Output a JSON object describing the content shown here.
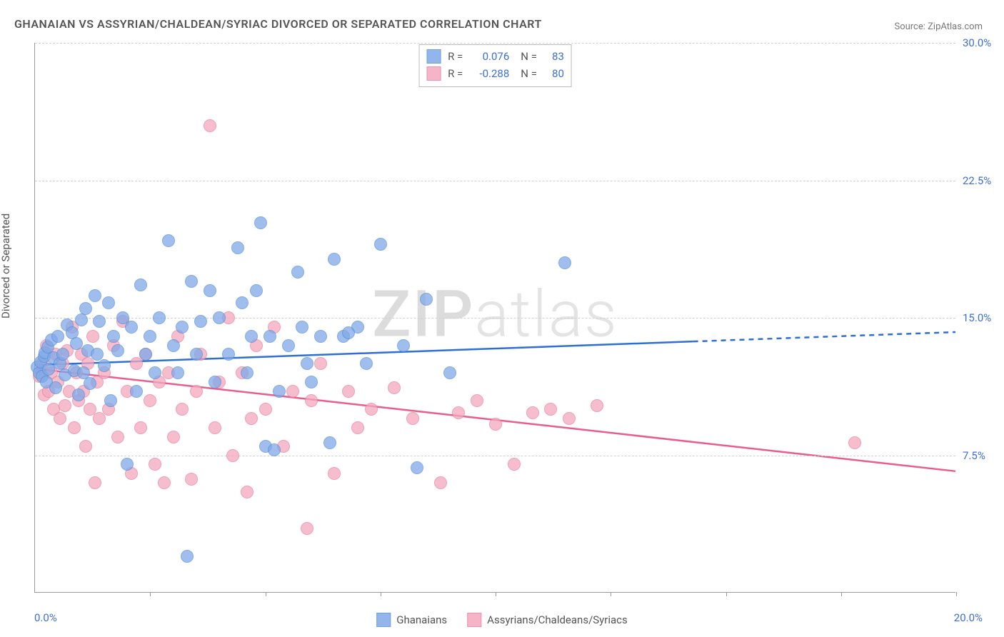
{
  "title": "GHANAIAN VS ASSYRIAN/CHALDEAN/SYRIAC DIVORCED OR SEPARATED CORRELATION CHART",
  "source_label": "Source: ",
  "source_name": "ZipAtlas.com",
  "ylabel": "Divorced or Separated",
  "watermark_bold": "ZIP",
  "watermark_thin": "atlas",
  "chart": {
    "type": "scatter",
    "xlim": [
      0,
      20
    ],
    "ylim": [
      0,
      30
    ],
    "x_ticks": [
      0,
      2.5,
      5,
      7.5,
      10,
      12.5,
      15,
      17.5,
      20
    ],
    "y_gridlines": [
      7.5,
      15,
      22.5,
      30
    ],
    "y_tick_labels": [
      "7.5%",
      "15.0%",
      "22.5%",
      "30.0%"
    ],
    "x_left_label": "0.0%",
    "x_right_label": "20.0%",
    "background_color": "#ffffff",
    "grid_color": "#d0d0d0",
    "axis_color": "#999999",
    "point_radius": 9,
    "point_border_width": 1.5,
    "point_fill_opacity": 0.35,
    "series": [
      {
        "id": "blue",
        "name": "Ghanaians",
        "color_fill": "#7fa9e8",
        "color_stroke": "#5b8fd9",
        "trend_color": "#2e6fd6",
        "R": "0.076",
        "N": "83",
        "trend": {
          "x1": 0,
          "y1": 12.4,
          "x2": 20,
          "y2": 14.2,
          "dash_from_x": 14.3
        },
        "points": [
          [
            0.05,
            12.3
          ],
          [
            0.1,
            12.0
          ],
          [
            0.12,
            12.6
          ],
          [
            0.15,
            11.8
          ],
          [
            0.2,
            12.9
          ],
          [
            0.22,
            13.1
          ],
          [
            0.25,
            11.5
          ],
          [
            0.28,
            13.4
          ],
          [
            0.3,
            12.2
          ],
          [
            0.35,
            13.8
          ],
          [
            0.4,
            12.8
          ],
          [
            0.45,
            11.2
          ],
          [
            0.5,
            14.0
          ],
          [
            0.55,
            12.5
          ],
          [
            0.6,
            13.0
          ],
          [
            0.65,
            11.9
          ],
          [
            0.7,
            14.6
          ],
          [
            0.8,
            14.2
          ],
          [
            0.85,
            12.1
          ],
          [
            0.9,
            13.6
          ],
          [
            0.95,
            10.8
          ],
          [
            1.0,
            14.9
          ],
          [
            1.05,
            12.0
          ],
          [
            1.1,
            15.5
          ],
          [
            1.15,
            13.2
          ],
          [
            1.2,
            11.4
          ],
          [
            1.3,
            16.2
          ],
          [
            1.35,
            13.0
          ],
          [
            1.4,
            14.8
          ],
          [
            1.5,
            12.4
          ],
          [
            1.6,
            15.8
          ],
          [
            1.65,
            10.5
          ],
          [
            1.7,
            14.0
          ],
          [
            1.8,
            13.2
          ],
          [
            1.9,
            15.0
          ],
          [
            2.0,
            7.0
          ],
          [
            2.1,
            14.5
          ],
          [
            2.2,
            11.0
          ],
          [
            2.3,
            16.8
          ],
          [
            2.4,
            13.0
          ],
          [
            2.5,
            14.0
          ],
          [
            2.6,
            12.0
          ],
          [
            2.7,
            15.0
          ],
          [
            2.9,
            19.2
          ],
          [
            3.0,
            13.5
          ],
          [
            3.1,
            12.0
          ],
          [
            3.2,
            14.5
          ],
          [
            3.3,
            2.0
          ],
          [
            3.4,
            17.0
          ],
          [
            3.5,
            13.0
          ],
          [
            3.6,
            14.8
          ],
          [
            3.8,
            16.5
          ],
          [
            3.9,
            11.5
          ],
          [
            4.0,
            15.0
          ],
          [
            4.2,
            13.0
          ],
          [
            4.4,
            18.8
          ],
          [
            4.5,
            15.8
          ],
          [
            4.6,
            12.0
          ],
          [
            4.7,
            14.0
          ],
          [
            4.8,
            16.5
          ],
          [
            4.9,
            20.2
          ],
          [
            5.0,
            8.0
          ],
          [
            5.1,
            14.0
          ],
          [
            5.2,
            7.8
          ],
          [
            5.3,
            11.0
          ],
          [
            5.5,
            13.5
          ],
          [
            5.7,
            17.5
          ],
          [
            5.8,
            14.5
          ],
          [
            5.9,
            12.5
          ],
          [
            6.0,
            11.5
          ],
          [
            6.2,
            14.0
          ],
          [
            6.4,
            8.2
          ],
          [
            6.5,
            18.2
          ],
          [
            6.7,
            14.0
          ],
          [
            7.0,
            14.5
          ],
          [
            7.2,
            12.5
          ],
          [
            7.5,
            19.0
          ],
          [
            8.0,
            13.5
          ],
          [
            8.3,
            6.8
          ],
          [
            8.5,
            16.0
          ],
          [
            9.0,
            12.0
          ],
          [
            11.5,
            18.0
          ],
          [
            6.8,
            14.2
          ]
        ]
      },
      {
        "id": "pink",
        "name": "Assyrians/Chaldeans/Syriacs",
        "color_fill": "#f4a9bd",
        "color_stroke": "#ea7fa1",
        "trend_color": "#e85d8b",
        "R": "-0.288",
        "N": "80",
        "trend": {
          "x1": 0,
          "y1": 12.2,
          "x2": 20,
          "y2": 6.6,
          "dash_from_x": 20
        },
        "points": [
          [
            0.1,
            11.8
          ],
          [
            0.15,
            12.5
          ],
          [
            0.2,
            10.8
          ],
          [
            0.25,
            13.5
          ],
          [
            0.3,
            11.0
          ],
          [
            0.35,
            12.0
          ],
          [
            0.4,
            10.0
          ],
          [
            0.45,
            13.0
          ],
          [
            0.5,
            11.5
          ],
          [
            0.55,
            9.5
          ],
          [
            0.6,
            12.5
          ],
          [
            0.65,
            10.2
          ],
          [
            0.7,
            13.2
          ],
          [
            0.75,
            11.0
          ],
          [
            0.8,
            14.5
          ],
          [
            0.85,
            9.0
          ],
          [
            0.9,
            12.0
          ],
          [
            0.95,
            10.5
          ],
          [
            1.0,
            13.0
          ],
          [
            1.05,
            11.0
          ],
          [
            1.1,
            8.0
          ],
          [
            1.15,
            12.5
          ],
          [
            1.2,
            10.0
          ],
          [
            1.25,
            14.0
          ],
          [
            1.3,
            6.0
          ],
          [
            1.35,
            11.5
          ],
          [
            1.4,
            9.5
          ],
          [
            1.5,
            12.0
          ],
          [
            1.6,
            10.0
          ],
          [
            1.7,
            13.5
          ],
          [
            1.8,
            8.5
          ],
          [
            1.9,
            14.8
          ],
          [
            2.0,
            11.0
          ],
          [
            2.1,
            6.5
          ],
          [
            2.2,
            12.5
          ],
          [
            2.3,
            9.0
          ],
          [
            2.4,
            13.0
          ],
          [
            2.5,
            10.5
          ],
          [
            2.6,
            7.0
          ],
          [
            2.7,
            11.5
          ],
          [
            2.8,
            6.0
          ],
          [
            2.9,
            12.0
          ],
          [
            3.0,
            8.5
          ],
          [
            3.1,
            14.0
          ],
          [
            3.2,
            10.0
          ],
          [
            3.4,
            6.2
          ],
          [
            3.5,
            11.0
          ],
          [
            3.6,
            13.0
          ],
          [
            3.8,
            25.5
          ],
          [
            3.9,
            9.0
          ],
          [
            4.0,
            11.5
          ],
          [
            4.2,
            15.0
          ],
          [
            4.3,
            7.5
          ],
          [
            4.5,
            12.0
          ],
          [
            4.7,
            9.5
          ],
          [
            4.8,
            13.5
          ],
          [
            5.0,
            10.0
          ],
          [
            5.2,
            14.5
          ],
          [
            5.4,
            8.0
          ],
          [
            5.6,
            11.0
          ],
          [
            5.9,
            3.5
          ],
          [
            6.0,
            10.5
          ],
          [
            6.2,
            12.5
          ],
          [
            6.5,
            6.5
          ],
          [
            6.8,
            11.0
          ],
          [
            7.0,
            9.0
          ],
          [
            7.3,
            10.0
          ],
          [
            7.8,
            11.2
          ],
          [
            8.2,
            9.5
          ],
          [
            8.8,
            6.0
          ],
          [
            9.2,
            9.8
          ],
          [
            9.6,
            10.5
          ],
          [
            10.0,
            9.2
          ],
          [
            10.4,
            7.0
          ],
          [
            10.8,
            9.8
          ],
          [
            11.2,
            10.0
          ],
          [
            11.6,
            9.5
          ],
          [
            12.2,
            10.2
          ],
          [
            17.8,
            8.2
          ],
          [
            4.6,
            5.5
          ]
        ]
      }
    ]
  },
  "top_legend": {
    "r_label": "R =",
    "n_label": "N ="
  },
  "bottom_legend_items": [
    "Ghanaians",
    "Assyrians/Chaldeans/Syriacs"
  ]
}
